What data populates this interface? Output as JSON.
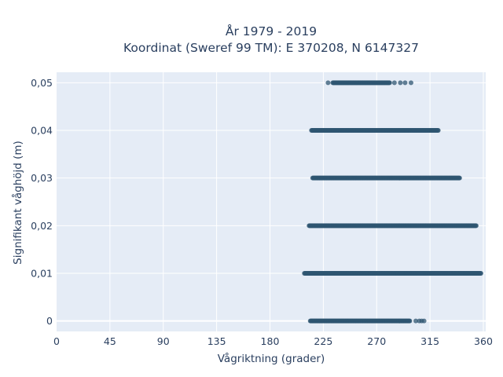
{
  "chart_data": {
    "type": "scatter",
    "title_line1": "År 1979 - 2019",
    "title_line2": "Koordinat (Sweref 99 TM): E 370208, N 6147327",
    "xlabel": "Vågriktning (grader)",
    "ylabel": "Signifikant våghöjd (m)",
    "xlim": [
      0,
      362
    ],
    "ylim": [
      -0.0022,
      0.0522
    ],
    "x_ticks": [
      0,
      45,
      90,
      135,
      180,
      225,
      270,
      315,
      360
    ],
    "x_tick_labels": [
      "0",
      "45",
      "90",
      "135",
      "180",
      "225",
      "270",
      "315",
      "360"
    ],
    "y_ticks": [
      0,
      0.01,
      0.02,
      0.03,
      0.04,
      0.05
    ],
    "y_tick_labels": [
      "0",
      "0,01",
      "0,02",
      "0,03",
      "0,04",
      "0,05"
    ],
    "grid": true,
    "colors": {
      "marker": "#2f5572",
      "plot_bg": "#e5ecf6",
      "grid": "#ffffff",
      "text": "#2a3f5f"
    },
    "series": [
      {
        "y": 0,
        "dense_range": [
          214,
          298
        ],
        "outliers": [
          303,
          306,
          308,
          310
        ]
      },
      {
        "y": 0.01,
        "dense_range": [
          209,
          358
        ],
        "outliers": []
      },
      {
        "y": 0.02,
        "dense_range": [
          213,
          354
        ],
        "outliers": []
      },
      {
        "y": 0.03,
        "dense_range": [
          216,
          340
        ],
        "outliers": []
      },
      {
        "y": 0.04,
        "dense_range": [
          215,
          322
        ],
        "outliers": []
      },
      {
        "y": 0.05,
        "dense_range": [
          233,
          281
        ],
        "outliers": [
          229,
          285,
          290,
          294,
          299
        ]
      }
    ]
  }
}
